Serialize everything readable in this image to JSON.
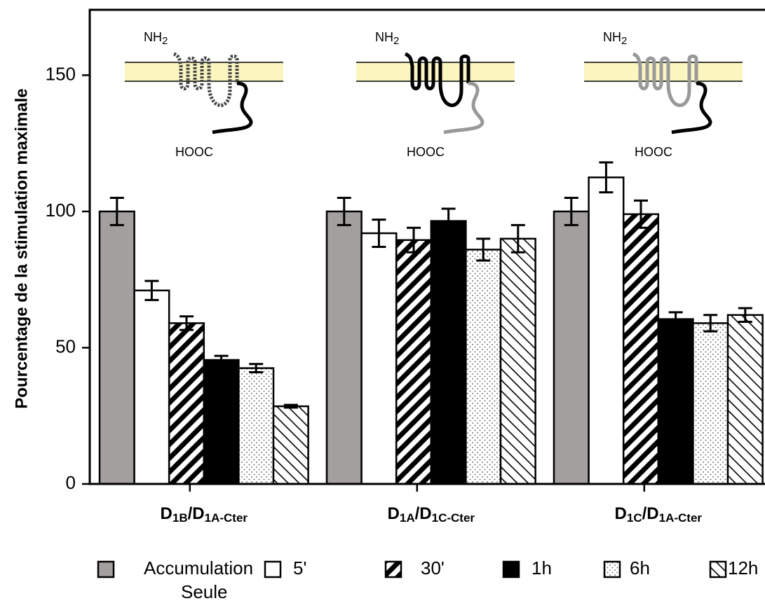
{
  "chart_data": {
    "type": "bar",
    "y_label": "Pourcentage de la stimulation maximale",
    "categories": [
      [
        "D",
        "1B",
        "/D",
        "1A-Cter"
      ],
      [
        "D",
        "1A",
        "/D",
        "1C-Cter"
      ],
      [
        "D",
        "1C",
        "/D",
        "1A-Cter"
      ]
    ],
    "series": [
      {
        "name": [
          "Accumulation",
          "Seule"
        ],
        "color": "#a49f9f",
        "pattern": "solid",
        "values": [
          100,
          100,
          100
        ],
        "errors": [
          5,
          5,
          5
        ]
      },
      {
        "name": "5'",
        "color": "#ffffff",
        "pattern": "solid",
        "values": [
          71,
          92,
          112.5
        ],
        "errors": [
          3.5,
          5,
          5.5
        ]
      },
      {
        "name": "30'",
        "color": "#000000",
        "pattern": "forward-hatch",
        "values": [
          59,
          89.5,
          99
        ],
        "errors": [
          2.5,
          4.5,
          5
        ]
      },
      {
        "name": "1h",
        "color": "#000000",
        "pattern": "solid",
        "values": [
          45.5,
          96.5,
          60.5
        ],
        "errors": [
          1.5,
          4.5,
          2.5
        ]
      },
      {
        "name": "6h",
        "color": "#000000",
        "pattern": "dots",
        "values": [
          42.5,
          86,
          59
        ],
        "errors": [
          1.5,
          4,
          3
        ]
      },
      {
        "name": "12h",
        "color": "#000000",
        "pattern": "back-hatch",
        "values": [
          28.5,
          90,
          62
        ],
        "errors": [
          0.5,
          5,
          2.5
        ]
      }
    ],
    "ylim": [
      0,
      174
    ],
    "yticks": [
      0,
      50,
      100,
      150
    ],
    "annotations": {
      "n_terminus": [
        "NH",
        "2"
      ],
      "c_terminus": "HOOC"
    }
  }
}
